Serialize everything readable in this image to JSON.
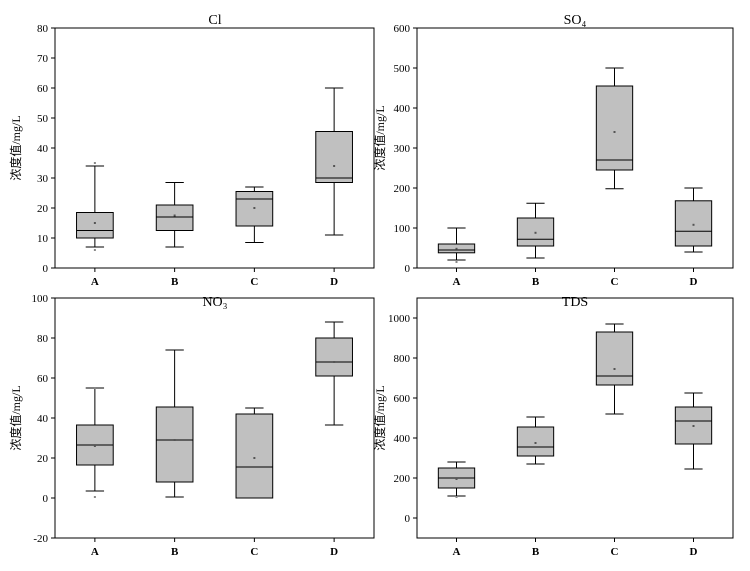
{
  "chart_data": [
    {
      "type": "box",
      "title": "Cl",
      "ylabel": "浓度值/mg/L",
      "ylim": [
        0,
        80
      ],
      "yticks": [
        0,
        10,
        20,
        30,
        40,
        50,
        60,
        70,
        80
      ],
      "categories": [
        "A",
        "B",
        "C",
        "D"
      ],
      "boxes": [
        {
          "whisker_low": 7,
          "q1": 10,
          "median": 12.5,
          "q3": 18.5,
          "whisker_high": 34,
          "mean": 15,
          "outliers": [
            6,
            35
          ]
        },
        {
          "whisker_low": 7,
          "q1": 12.5,
          "median": 17,
          "q3": 21,
          "whisker_high": 28.5,
          "mean": 17.5,
          "outliers": []
        },
        {
          "whisker_low": 8.5,
          "q1": 14,
          "median": 23,
          "q3": 25.5,
          "whisker_high": 27,
          "mean": 20,
          "outliers": []
        },
        {
          "whisker_low": 11,
          "q1": 28.5,
          "median": 30,
          "q3": 45.5,
          "whisker_high": 60,
          "mean": 34,
          "outliers": []
        }
      ]
    },
    {
      "type": "box",
      "title": "SO₄",
      "ylabel": "浓度值/mg/L",
      "ylim": [
        0,
        600
      ],
      "yticks": [
        0,
        100,
        200,
        300,
        400,
        500,
        600
      ],
      "categories": [
        "A",
        "B",
        "C",
        "D"
      ],
      "boxes": [
        {
          "whisker_low": 20,
          "q1": 38,
          "median": 45,
          "q3": 60,
          "whisker_high": 100,
          "mean": 48,
          "outliers": [
            15
          ]
        },
        {
          "whisker_low": 25,
          "q1": 55,
          "median": 72,
          "q3": 125,
          "whisker_high": 162,
          "mean": 88,
          "outliers": []
        },
        {
          "whisker_low": 198,
          "q1": 245,
          "median": 270,
          "q3": 455,
          "whisker_high": 500,
          "mean": 340,
          "outliers": []
        },
        {
          "whisker_low": 40,
          "q1": 55,
          "median": 92,
          "q3": 168,
          "whisker_high": 200,
          "mean": 108,
          "outliers": []
        }
      ]
    },
    {
      "type": "box",
      "title": "NO₃",
      "ylabel": "浓度值/mg/L",
      "ylim": [
        -20,
        100
      ],
      "yticks": [
        -20,
        0,
        20,
        40,
        60,
        80,
        100
      ],
      "categories": [
        "A",
        "B",
        "C",
        "D"
      ],
      "boxes": [
        {
          "whisker_low": 3.5,
          "q1": 16.5,
          "median": 26.5,
          "q3": 36.5,
          "whisker_high": 55,
          "mean": 26,
          "outliers": [
            0.5,
            55
          ]
        },
        {
          "whisker_low": 0.5,
          "q1": 8,
          "median": 29,
          "q3": 45.5,
          "whisker_high": 74,
          "mean": 29,
          "outliers": []
        },
        {
          "whisker_low": 0,
          "q1": 0,
          "median": 15.5,
          "q3": 42,
          "whisker_high": 45,
          "mean": 20,
          "outliers": []
        },
        {
          "whisker_low": 36.5,
          "q1": 61,
          "median": 68,
          "q3": 80,
          "whisker_high": 88,
          "mean": 68,
          "outliers": []
        }
      ]
    },
    {
      "type": "box",
      "title": "TDS",
      "ylabel": "浓度值/mg/L",
      "ylim": [
        -100,
        1100
      ],
      "yticks": [
        0,
        200,
        400,
        600,
        800,
        1000
      ],
      "categories": [
        "A",
        "B",
        "C",
        "D"
      ],
      "boxes": [
        {
          "whisker_low": 110,
          "q1": 150,
          "median": 200,
          "q3": 250,
          "whisker_high": 280,
          "mean": 195,
          "outliers": [
            105
          ]
        },
        {
          "whisker_low": 270,
          "q1": 310,
          "median": 355,
          "q3": 455,
          "whisker_high": 505,
          "mean": 375,
          "outliers": []
        },
        {
          "whisker_low": 520,
          "q1": 665,
          "median": 710,
          "q3": 930,
          "whisker_high": 970,
          "mean": 745,
          "outliers": []
        },
        {
          "whisker_low": 245,
          "q1": 370,
          "median": 485,
          "q3": 555,
          "whisker_high": 625,
          "mean": 460,
          "outliers": []
        }
      ]
    }
  ]
}
